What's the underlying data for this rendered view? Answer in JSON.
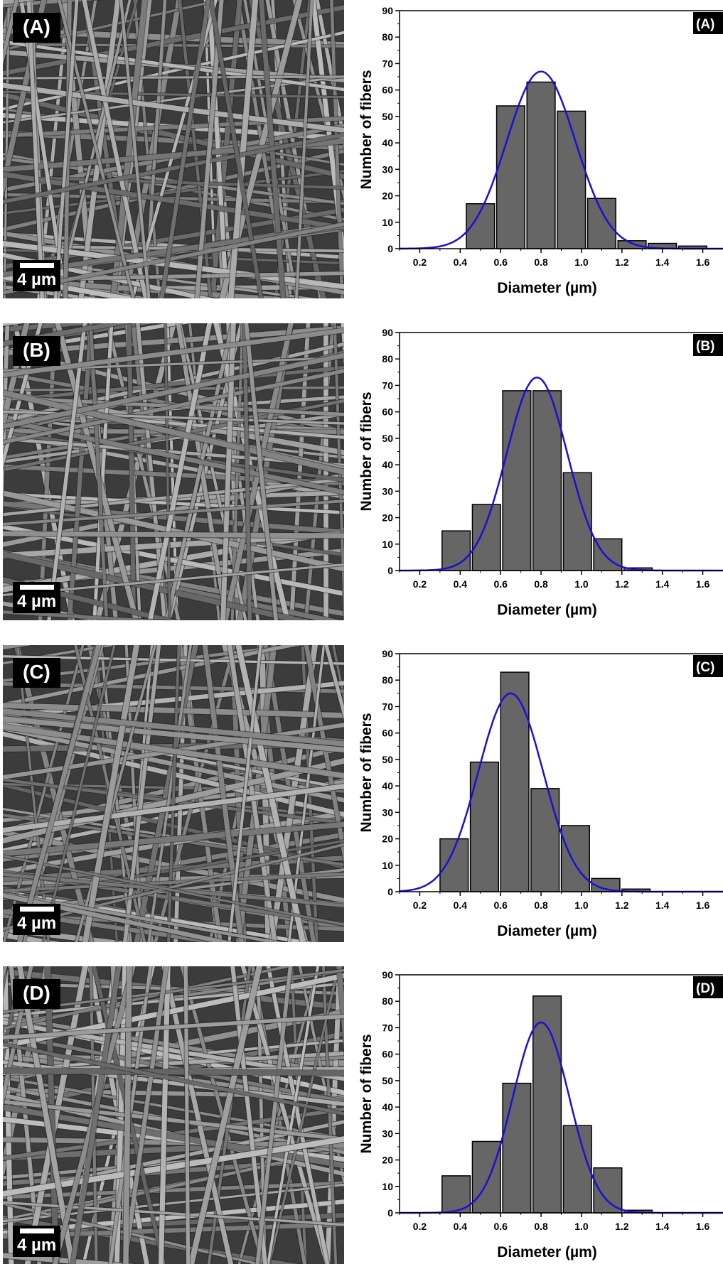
{
  "panels": [
    {
      "sem_label": "(A)",
      "scale_label": "4 µm"
    },
    {
      "sem_label": "(B)",
      "scale_label": "4 µm"
    },
    {
      "sem_label": "(C)",
      "scale_label": "4 µm"
    },
    {
      "sem_label": "(D)",
      "scale_label": "4 µm"
    }
  ],
  "colors": {
    "bar_fill": "#666666",
    "bar_stroke": "#000000",
    "fit_curve": "#1a10d6",
    "label_bg": "#000000"
  },
  "chart_data": [
    {
      "type": "bar",
      "panel_label": "(A)",
      "xlabel": "Diameter (µm)",
      "ylabel": "Number of fibers",
      "xlim": [
        0.1,
        1.7
      ],
      "ylim": [
        0,
        90
      ],
      "xticks": [
        0.2,
        0.4,
        0.6,
        0.8,
        1.0,
        1.2,
        1.4,
        1.6
      ],
      "yticks": [
        0,
        10,
        20,
        30,
        40,
        50,
        60,
        70,
        80,
        90
      ],
      "bin_width": 0.15,
      "categories": [
        0.5,
        0.65,
        0.8,
        0.95,
        1.1,
        1.25,
        1.4,
        1.55
      ],
      "values": [
        17,
        54,
        63,
        52,
        19,
        3,
        2,
        1
      ],
      "fit": {
        "kind": "gaussian",
        "mean": 0.8,
        "sd": 0.17,
        "peak": 67
      }
    },
    {
      "type": "bar",
      "panel_label": "(B)",
      "xlabel": "Diameter (µm)",
      "ylabel": "Number of fibers",
      "xlim": [
        0.1,
        1.7
      ],
      "ylim": [
        0,
        90
      ],
      "xticks": [
        0.2,
        0.4,
        0.6,
        0.8,
        1.0,
        1.2,
        1.4,
        1.6
      ],
      "yticks": [
        0,
        10,
        20,
        30,
        40,
        50,
        60,
        70,
        80,
        90
      ],
      "bin_width": 0.15,
      "categories": [
        0.38,
        0.53,
        0.68,
        0.83,
        0.98,
        1.13,
        1.28
      ],
      "values": [
        15,
        25,
        68,
        68,
        37,
        12,
        1
      ],
      "fit": {
        "kind": "gaussian",
        "mean": 0.78,
        "sd": 0.15,
        "peak": 73
      }
    },
    {
      "type": "bar",
      "panel_label": "(C)",
      "xlabel": "Diameter (µm)",
      "ylabel": "Number of fibers",
      "xlim": [
        0.1,
        1.7
      ],
      "ylim": [
        0,
        90
      ],
      "xticks": [
        0.2,
        0.4,
        0.6,
        0.8,
        1.0,
        1.2,
        1.4,
        1.6
      ],
      "yticks": [
        0,
        10,
        20,
        30,
        40,
        50,
        60,
        70,
        80,
        90
      ],
      "bin_width": 0.15,
      "categories": [
        0.37,
        0.52,
        0.67,
        0.82,
        0.97,
        1.12,
        1.27
      ],
      "values": [
        20,
        49,
        83,
        39,
        25,
        5,
        1
      ],
      "fit": {
        "kind": "gaussian",
        "mean": 0.65,
        "sd": 0.16,
        "peak": 75
      }
    },
    {
      "type": "bar",
      "panel_label": "(D)",
      "xlabel": "Diameter (µm)",
      "ylabel": "Number of fibers",
      "xlim": [
        0.1,
        1.7
      ],
      "ylim": [
        0,
        90
      ],
      "xticks": [
        0.2,
        0.4,
        0.6,
        0.8,
        1.0,
        1.2,
        1.4,
        1.6
      ],
      "yticks": [
        0,
        10,
        20,
        30,
        40,
        50,
        60,
        70,
        80,
        90
      ],
      "bin_width": 0.15,
      "categories": [
        0.38,
        0.53,
        0.68,
        0.83,
        0.98,
        1.13,
        1.28
      ],
      "values": [
        14,
        27,
        49,
        82,
        33,
        17,
        1
      ],
      "fit": {
        "kind": "gaussian",
        "mean": 0.8,
        "sd": 0.14,
        "peak": 72
      }
    }
  ]
}
